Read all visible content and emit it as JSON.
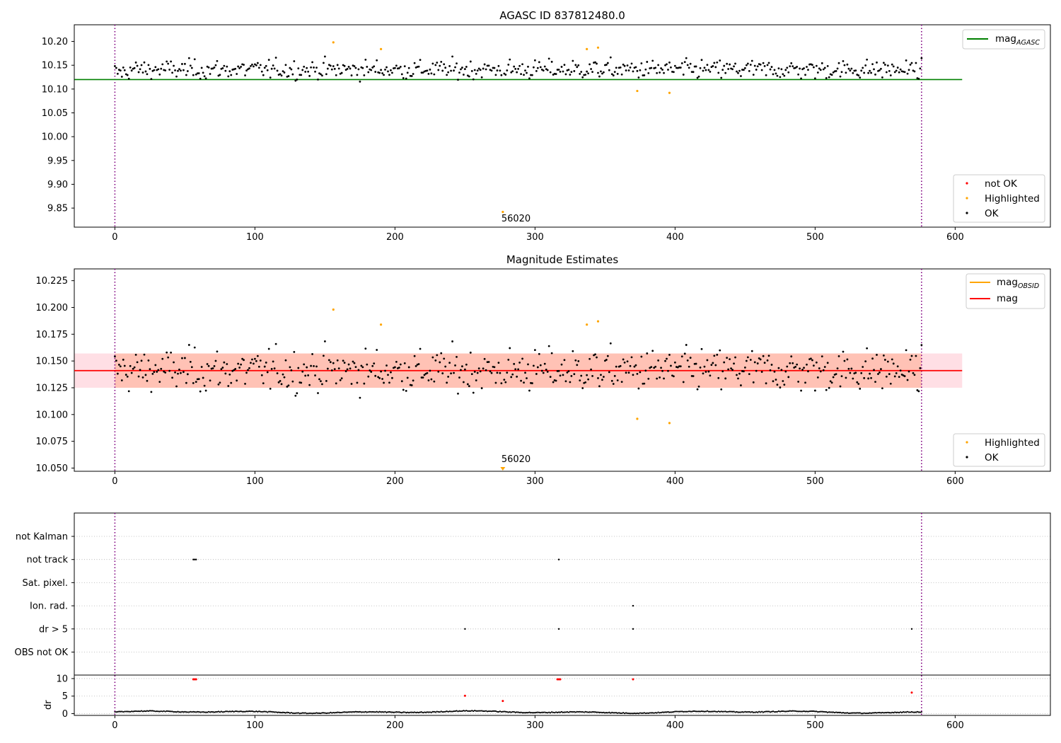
{
  "chart_data": [
    {
      "type": "scatter",
      "title": "AGASC ID 837812480.0",
      "xlabel": "",
      "ylabel": "",
      "xlim": [
        -29,
        668
      ],
      "ylim": [
        9.81,
        10.235
      ],
      "xticks": [
        "0",
        "100",
        "200",
        "300",
        "400",
        "500",
        "600"
      ],
      "yticks": [
        "10.20",
        "10.15",
        "10.10",
        "10.05",
        "10.00",
        "9.95",
        "9.90",
        "9.85"
      ],
      "mag_agasc": 10.12,
      "mag_agasc_x_range": [
        0,
        605
      ],
      "vertical_dotted_lines_x": [
        0,
        576
      ],
      "annotation": {
        "text": "56020",
        "x": 277,
        "y": 9.825
      },
      "legend_upper": [
        {
          "label": "mag",
          "sub": "AGASC",
          "color": "#008000",
          "kind": "line"
        }
      ],
      "legend_lower": [
        {
          "label": "not OK",
          "color": "#ff0000",
          "kind": "marker"
        },
        {
          "label": "Highlighted",
          "color": "#ffa500",
          "kind": "marker"
        },
        {
          "label": "OK",
          "color": "#000000",
          "kind": "marker"
        }
      ],
      "series": [
        {
          "name": "OK",
          "color": "#000000",
          "points": "ok"
        },
        {
          "name": "Highlighted",
          "color": "#ffa500",
          "points": [
            [
              156,
              10.198
            ],
            [
              190,
              10.184
            ],
            [
              337,
              10.184
            ],
            [
              345,
              10.187
            ],
            [
              373,
              10.096
            ],
            [
              396,
              10.092
            ],
            [
              277,
              9.842
            ]
          ]
        },
        {
          "name": "not OK",
          "color": "#ff0000",
          "points": []
        }
      ]
    },
    {
      "type": "scatter",
      "title": "Magnitude Estimates",
      "xlabel": "",
      "ylabel": "",
      "xlim": [
        -29,
        668
      ],
      "ylim": [
        10.047,
        10.236
      ],
      "xticks": [
        "0",
        "100",
        "200",
        "300",
        "400",
        "500",
        "600"
      ],
      "yticks": [
        "10.225",
        "10.200",
        "10.175",
        "10.150",
        "10.125",
        "10.100",
        "10.075",
        "10.050"
      ],
      "mag": 10.141,
      "mag_band": [
        10.125,
        10.157
      ],
      "mag_band_x_range": [
        -29,
        605
      ],
      "mag_obsid_band_x_range": [
        0,
        576
      ],
      "vertical_dotted_lines_x": [
        0,
        576
      ],
      "annotation": {
        "text": "56020",
        "x": 277,
        "y": 10.057
      },
      "legend_upper": [
        {
          "label": "mag",
          "sub": "OBSID",
          "color": "#ffa500",
          "kind": "line"
        },
        {
          "label": "mag",
          "sub": "",
          "color": "#ff0000",
          "kind": "line"
        }
      ],
      "legend_lower": [
        {
          "label": "Highlighted",
          "color": "#ffa500",
          "kind": "marker"
        },
        {
          "label": "OK",
          "color": "#000000",
          "kind": "marker"
        }
      ],
      "series": [
        {
          "name": "OK",
          "color": "#000000",
          "points": "ok"
        },
        {
          "name": "Highlighted",
          "color": "#ffa500",
          "points": [
            [
              156,
              10.198
            ],
            [
              190,
              10.184
            ],
            [
              337,
              10.184
            ],
            [
              345,
              10.187
            ],
            [
              373,
              10.096
            ],
            [
              396,
              10.092
            ]
          ]
        }
      ],
      "offscale_marker": {
        "x": 277,
        "y": 10.049,
        "color": "#ffa500"
      }
    },
    {
      "type": "scatter",
      "title": "",
      "xlabel": "",
      "xlim": [
        -29,
        668
      ],
      "xticks": [
        "0",
        "100",
        "200",
        "300",
        "400",
        "500",
        "600"
      ],
      "flag_rows": [
        "not Kalman",
        "not track",
        "Sat. pixel.",
        "Ion. rad.",
        "dr > 5",
        "OBS not OK"
      ],
      "flag_points": [
        {
          "row": "not track",
          "x": [
            56,
            57,
            58,
            317
          ]
        },
        {
          "row": "Ion. rad.",
          "x": [
            370
          ]
        },
        {
          "row": "dr > 5",
          "x": [
            250,
            317,
            370,
            569
          ]
        }
      ],
      "dr_ylabel": "dr",
      "dr_yticks": [
        "10",
        "5",
        "0"
      ],
      "dr_ylim": [
        -0.5,
        11
      ],
      "dr_red_points": [
        [
          56,
          9.8
        ],
        [
          57,
          9.8
        ],
        [
          58,
          9.8
        ],
        [
          316,
          9.8
        ],
        [
          317,
          9.8
        ],
        [
          318,
          9.8
        ],
        [
          370,
          9.8
        ],
        [
          250,
          5.1
        ],
        [
          277,
          3.6
        ],
        [
          569,
          6.0
        ]
      ],
      "vertical_dotted_lines_x": [
        0,
        576
      ]
    }
  ],
  "colors": {
    "ok": "#000000",
    "highlighted": "#ffa500",
    "not_ok": "#ff0000",
    "mag_agasc": "#008000",
    "mag": "#ff0000",
    "band_obsid": "#ffa07a",
    "band_mag": "#ffc0cb",
    "vlines": "#800080"
  }
}
